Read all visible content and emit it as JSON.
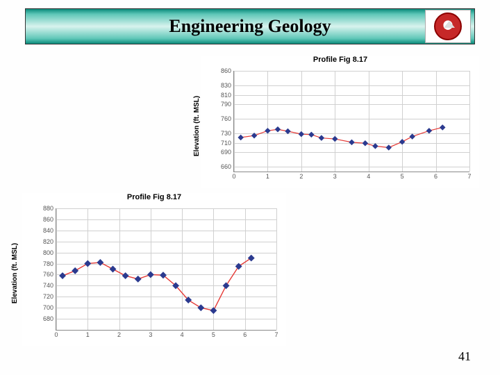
{
  "header": {
    "title": "Engineering Geology"
  },
  "page_number": "41",
  "chart_top": {
    "type": "line",
    "title": "Profile Fig 8.17",
    "ylabel": "Elevation (ft. MSL)",
    "xlim": [
      0,
      7
    ],
    "ylim": [
      650,
      860
    ],
    "xtick_step": 1,
    "yticks": [
      660,
      690,
      710,
      730,
      760,
      790,
      810,
      830,
      860
    ],
    "line_color": "#e53935",
    "marker_color": "#2b3a8f",
    "marker": "diamond",
    "marker_size": 6,
    "line_width": 1.2,
    "background_color": "#ffffff",
    "grid_color": "#d0d0d0",
    "title_fontsize": 11,
    "label_fontsize": 10,
    "tick_fontsize": 9,
    "x": [
      0.2,
      0.6,
      1.0,
      1.3,
      1.6,
      2.0,
      2.3,
      2.6,
      3.0,
      3.5,
      3.9,
      4.2,
      4.6,
      5.0,
      5.3,
      5.8,
      6.2
    ],
    "y": [
      721,
      725,
      735,
      738,
      734,
      728,
      727,
      720,
      718,
      711,
      709,
      703,
      700,
      712,
      723,
      735,
      742
    ]
  },
  "chart_bottom": {
    "type": "line",
    "title": "Profile Fig 8.17",
    "ylabel": "Elevation (ft. MSL)",
    "xlim": [
      0,
      7
    ],
    "ylim": [
      660,
      880
    ],
    "xtick_step": 1,
    "yticks": [
      680,
      700,
      720,
      740,
      760,
      780,
      800,
      820,
      840,
      860,
      880
    ],
    "line_color": "#e53935",
    "marker_color": "#2b3a8f",
    "marker": "diamond",
    "marker_size": 7,
    "line_width": 1.4,
    "background_color": "#ffffff",
    "grid_color": "#d0d0d0",
    "title_fontsize": 11,
    "label_fontsize": 10,
    "tick_fontsize": 9,
    "x": [
      0.2,
      0.6,
      1.0,
      1.4,
      1.8,
      2.2,
      2.6,
      3.0,
      3.4,
      3.8,
      4.2,
      4.6,
      5.0,
      5.4,
      5.8,
      6.2
    ],
    "y": [
      758,
      767,
      780,
      782,
      770,
      758,
      752,
      760,
      759,
      740,
      714,
      700,
      695,
      740,
      775,
      790
    ]
  }
}
